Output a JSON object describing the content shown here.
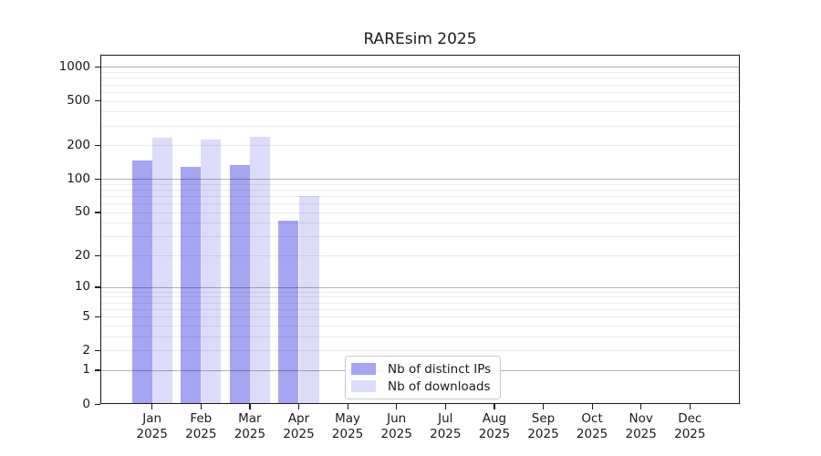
{
  "chart_data": {
    "type": "bar",
    "title": "RAREsim 2025",
    "categories": [
      "Jan 2025",
      "Feb 2025",
      "Mar 2025",
      "Apr 2025",
      "May 2025",
      "Jun 2025",
      "Jul 2025",
      "Aug 2025",
      "Sep 2025",
      "Oct 2025",
      "Nov 2025",
      "Dec 2025"
    ],
    "series": [
      {
        "name": "Nb of distinct IPs",
        "color": "#a5a5f2",
        "values": [
          146,
          127,
          133,
          42,
          0,
          0,
          0,
          0,
          0,
          0,
          0,
          0
        ]
      },
      {
        "name": "Nb of downloads",
        "color": "#dcdcfa",
        "values": [
          235,
          226,
          240,
          70,
          0,
          0,
          0,
          0,
          0,
          0,
          0,
          0
        ]
      }
    ],
    "xlabel": "",
    "ylabel": "",
    "yscale": "log1p",
    "y_ticks": [
      1000,
      500,
      200,
      100,
      50,
      20,
      10,
      5,
      2,
      1,
      0
    ],
    "ylim": [
      0,
      1290
    ],
    "grid": {
      "orientation": "horizontal",
      "major_decades": [
        1,
        10,
        100,
        1000
      ],
      "minor_multiples": [
        2,
        3,
        4,
        5,
        6,
        7,
        8,
        9
      ],
      "minor_decade_bases": [
        1,
        10,
        100
      ]
    },
    "legend": {
      "position": "lower center",
      "entries": [
        "Nb of distinct IPs",
        "Nb of downloads"
      ]
    }
  },
  "colors": {
    "background": "#ffffff",
    "bar_distinct_ips": "#a5a5f2",
    "bar_downloads": "#dcdcfa",
    "spine": "#1a1a1a",
    "text": "#1a1a1a",
    "grid_major": "#b3b3b3",
    "grid_minor": "#ebebeb",
    "legend_border": "#c9c9c9"
  }
}
